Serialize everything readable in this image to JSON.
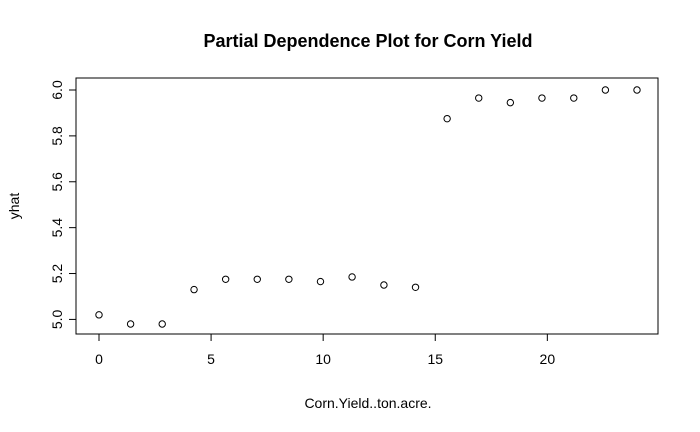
{
  "chart_data": {
    "type": "scatter",
    "title": "Partial Dependence Plot for Corn Yield",
    "xlabel": "Corn.Yield..ton.acre.",
    "ylabel": "yhat",
    "xlim": [
      0,
      24
    ],
    "ylim": [
      4.98,
      6.0
    ],
    "x_ticks": [
      0,
      5,
      10,
      15,
      20
    ],
    "y_ticks": [
      5.0,
      5.2,
      5.4,
      5.6,
      5.8,
      6.0
    ],
    "x_tick_labels": [
      "0",
      "5",
      "10",
      "15",
      "20"
    ],
    "y_tick_labels": [
      "5.0",
      "5.2",
      "5.4",
      "5.6",
      "5.8",
      "6.0"
    ],
    "marker": "open-circle",
    "grid": false,
    "points": [
      {
        "x": 0.0,
        "y": 5.02
      },
      {
        "x": 1.41,
        "y": 4.98
      },
      {
        "x": 2.82,
        "y": 4.98
      },
      {
        "x": 4.24,
        "y": 5.13
      },
      {
        "x": 5.65,
        "y": 5.175
      },
      {
        "x": 7.06,
        "y": 5.175
      },
      {
        "x": 8.47,
        "y": 5.175
      },
      {
        "x": 9.88,
        "y": 5.165
      },
      {
        "x": 11.29,
        "y": 5.185
      },
      {
        "x": 12.71,
        "y": 5.15
      },
      {
        "x": 14.12,
        "y": 5.14
      },
      {
        "x": 15.53,
        "y": 5.875
      },
      {
        "x": 16.94,
        "y": 5.965
      },
      {
        "x": 18.35,
        "y": 5.945
      },
      {
        "x": 19.76,
        "y": 5.965
      },
      {
        "x": 21.18,
        "y": 5.965
      },
      {
        "x": 22.59,
        "y": 6.0
      },
      {
        "x": 24.0,
        "y": 6.0
      }
    ]
  }
}
